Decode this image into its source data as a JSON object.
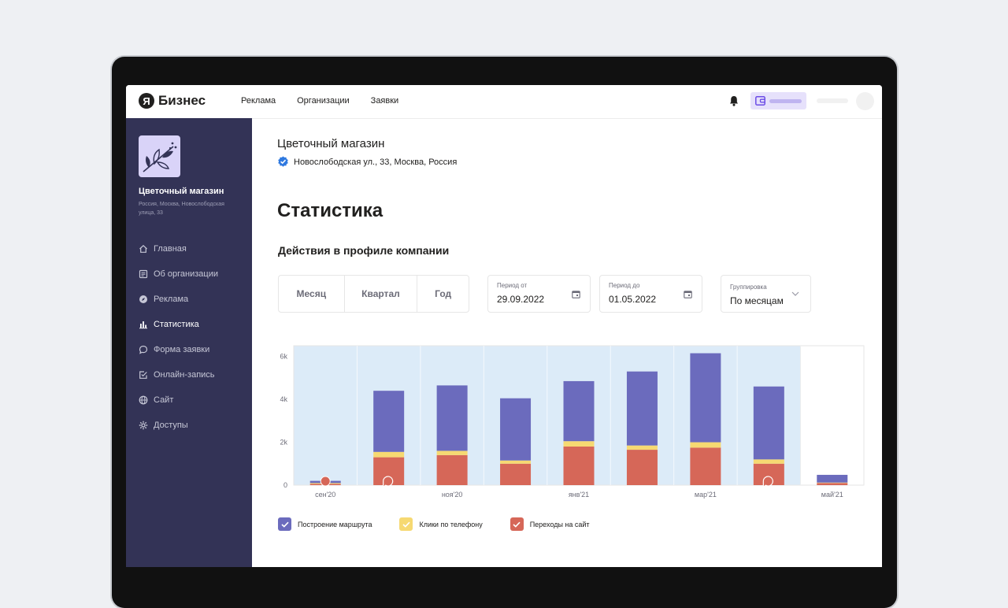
{
  "header": {
    "logo_letter": "Я",
    "brand": "Бизнес",
    "nav": [
      "Реклама",
      "Организации",
      "Заявки"
    ]
  },
  "sidebar": {
    "org_name": "Цветочный магазин",
    "org_address": "Россия, Москва, Новослободская улица, 33",
    "items": [
      {
        "label": "Главная",
        "icon": "home-icon"
      },
      {
        "label": "Об организации",
        "icon": "document-icon"
      },
      {
        "label": "Реклама",
        "icon": "compass-icon"
      },
      {
        "label": "Статистика",
        "icon": "bar-chart-icon",
        "active": true
      },
      {
        "label": "Форма заявки",
        "icon": "chat-bubble-icon"
      },
      {
        "label": "Онлайн-запись",
        "icon": "checkbox-icon"
      },
      {
        "label": "Сайт",
        "icon": "globe-icon"
      },
      {
        "label": "Доступы",
        "icon": "gear-icon"
      }
    ]
  },
  "main": {
    "company": "Цветочный магазин",
    "address": "Новослободская ул., 33, Москва, Россия",
    "title": "Статистика",
    "section_title": "Действия в профиле компании",
    "periods": [
      "Месяц",
      "Квартал",
      "Год"
    ],
    "date_from": {
      "label": "Период от",
      "value": "29.09.2022"
    },
    "date_to": {
      "label": "Период до",
      "value": "01.05.2022"
    },
    "grouping": {
      "label": "Группировка",
      "value": "По месяцам"
    }
  },
  "chart_data": {
    "type": "bar",
    "stacked": true,
    "categories": [
      "сен'20",
      "окт'20",
      "ноя'20",
      "дек'20",
      "янв'21",
      "фев'21",
      "мар'21",
      "апр'21",
      "май'21"
    ],
    "x_tick_labels": [
      "сен'20",
      "",
      "ноя'20",
      "",
      "янв'21",
      "",
      "мар'21",
      "",
      "май'21"
    ],
    "ytick_labels": [
      "0",
      "2k",
      "4k",
      "6k"
    ],
    "ylim": [
      0,
      6500
    ],
    "selected_range": [
      "сен'20",
      "апр'21"
    ],
    "series": [
      {
        "name": "Переходы на сайт",
        "color": "#d66758",
        "values": [
          60,
          1300,
          1400,
          1000,
          1800,
          1650,
          1750,
          1000,
          100
        ]
      },
      {
        "name": "Клики по телефону",
        "color": "#f6d972",
        "values": [
          40,
          250,
          200,
          150,
          250,
          200,
          250,
          200,
          20
        ]
      },
      {
        "name": "Построение маршрута",
        "color": "#6b6bbd",
        "values": [
          100,
          2850,
          3050,
          2900,
          2800,
          3450,
          4150,
          3400,
          360
        ]
      }
    ],
    "markers": [
      {
        "category": "сен'20",
        "style": "filled"
      },
      {
        "category": "окт'20",
        "style": "outline"
      },
      {
        "category": "апр'21",
        "style": "outline"
      }
    ]
  },
  "legend": [
    {
      "label": "Построение маршрута",
      "color": "#6b6bbd"
    },
    {
      "label": "Клики по телефону",
      "color": "#f6d972"
    },
    {
      "label": "Переходы на сайт",
      "color": "#d66758"
    }
  ]
}
